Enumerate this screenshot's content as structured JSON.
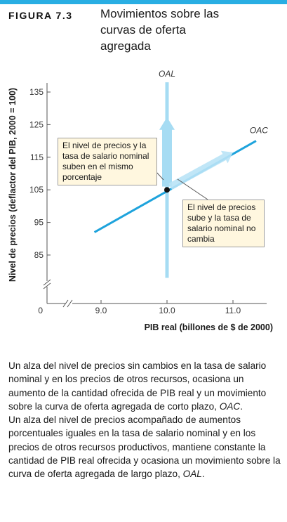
{
  "figure": {
    "label": "FIGURA 7.3",
    "title": "Movimientos sobre las curvas de oferta agregada"
  },
  "chart_data": {
    "type": "line",
    "title": "Movimientos sobre las curvas de oferta agregada",
    "xlabel": "PIB real (billones de $ de 2000)",
    "ylabel": "Nivel de precios (deflactor del PIB, 2000 = 100)",
    "xlim": [
      9.0,
      11.0
    ],
    "ylim": [
      85,
      135
    ],
    "x_ticks": [
      "9.0",
      "10.0",
      "11.0"
    ],
    "y_ticks": [
      "85",
      "95",
      "105",
      "115",
      "125",
      "135"
    ],
    "origin_label": "0",
    "axis_breaks": true,
    "grid": false,
    "series": [
      {
        "name": "OAC",
        "x": [
          8.9,
          11.35
        ],
        "y": [
          92,
          120
        ],
        "color": "#1ea3dc"
      },
      {
        "name": "OAL",
        "x": [
          10.0,
          10.0
        ],
        "y": [
          78,
          138
        ],
        "color": "#a6dcf3"
      }
    ],
    "points": [
      {
        "x": 10.0,
        "y": 105
      }
    ],
    "arrows": [
      {
        "from": [
          10.0,
          106
        ],
        "to": [
          10.0,
          126
        ],
        "color": "#a6dcf3"
      },
      {
        "from": [
          10.05,
          106
        ],
        "to": [
          11.0,
          116.5
        ],
        "color": "#b9e3f6"
      }
    ],
    "annotations": [
      "El nivel de precios y la tasa de salario nominal suben en el mismo porcentaje",
      "El nivel de precios sube y la tasa de salario nominal no cambia"
    ]
  },
  "notes": {
    "left": "El nivel de precios y la tasa de salario nominal suben en el mismo porcentaje",
    "right": "El nivel de precios sube y la tasa de salario nominal no cambia"
  },
  "caption": {
    "p1_main": "Un alza del nivel de precios sin cambios en la tasa de salario nominal y en los precios de otros recursos, ocasiona un aumento de la cantidad ofrecida de PIB real y un movimiento sobre la curva de oferta agregada de corto plazo, ",
    "p1_italic": "OAC",
    "p1_end": ".",
    "p2_main": "Un alza del nivel de precios acompañado de aumentos porcentuales iguales en la tasa de salario nominal y en los precios de otros recursos productivos, mantiene constante la cantidad de PIB real ofrecida y ocasiona un movimiento sobre la curva de oferta agregada de largo plazo, ",
    "p2_italic": "OAL",
    "p2_end": "."
  },
  "colors": {
    "accent_bar": "#29aee3",
    "oac_line": "#1ea3dc",
    "oal_line": "#a6dcf3",
    "note_bg": "#fff7df"
  }
}
